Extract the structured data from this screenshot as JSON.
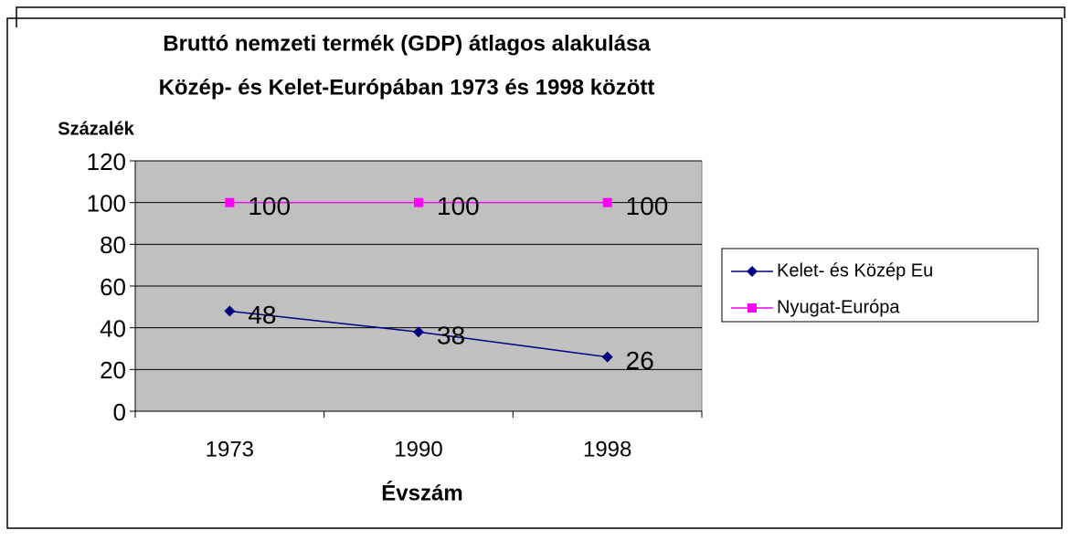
{
  "chart_data": {
    "type": "line",
    "title": [
      "Bruttó nemzeti termék (GDP) átlagos alakulása",
      "Közép- és Kelet-Európában 1973 és 1998 között"
    ],
    "y_label": "Százalék",
    "x_label": "Évszám",
    "categories": [
      "1973",
      "1990",
      "1998"
    ],
    "series": [
      {
        "name": "Kelet- és Közép Eu",
        "color": "#000080",
        "marker": "diamond",
        "values": [
          48,
          38,
          26
        ]
      },
      {
        "name": "Nyugat-Európa",
        "color": "#ff00ff",
        "marker": "square",
        "values": [
          100,
          100,
          100
        ]
      }
    ],
    "ylim": [
      0,
      120
    ],
    "yticks": [
      0,
      20,
      40,
      60,
      80,
      100,
      120
    ],
    "grid": true,
    "plot_background": "#c0c0c0",
    "legend": "right",
    "data_labels": true
  }
}
